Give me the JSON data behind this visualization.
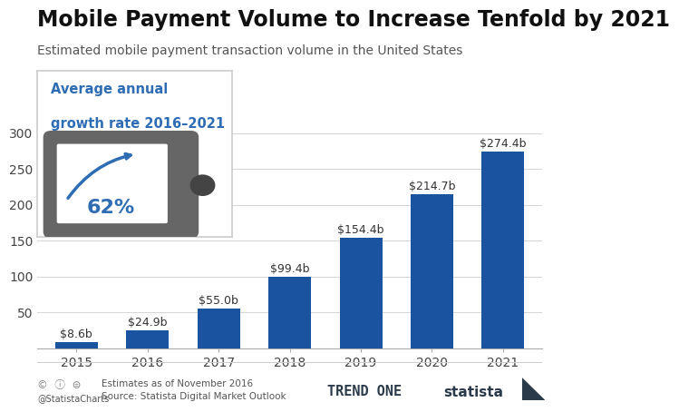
{
  "title": "Mobile Payment Volume to Increase Tenfold by 2021",
  "subtitle": "Estimated mobile payment transaction volume in the United States",
  "categories": [
    "2015",
    "2016",
    "2017",
    "2018",
    "2019",
    "2020",
    "2021"
  ],
  "values": [
    8.6,
    24.9,
    55.0,
    99.4,
    154.4,
    214.7,
    274.4
  ],
  "labels": [
    "$8.6b",
    "$24.9b",
    "$55.0b",
    "$99.4b",
    "$154.4b",
    "$214.7b",
    "$274.4b"
  ],
  "bar_color": "#1a53a0",
  "background_color": "#ffffff",
  "ylim": [
    0,
    300
  ],
  "yticks": [
    0,
    50,
    100,
    150,
    200,
    250,
    300
  ],
  "grid_color": "#d5d5d5",
  "annotation_text_line1": "Average annual",
  "annotation_text_line2": "growth rate 2016–2021",
  "annotation_pct": "62%",
  "annotation_color": "#2e6db4",
  "phone_body_color": "#666666",
  "phone_screen_color": "#ffffff",
  "footer_left1": "Estimates as of November 2016",
  "footer_left2": "Source: Statista Digital Market Outlook",
  "footer_copy": "@StatistaCharts",
  "title_fontsize": 17,
  "subtitle_fontsize": 10,
  "label_fontsize": 9,
  "tick_fontsize": 10
}
